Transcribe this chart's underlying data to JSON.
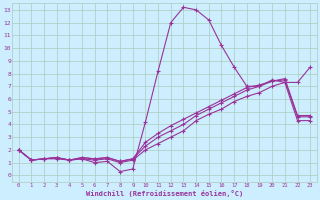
{
  "background_color": "#cceeff",
  "grid_color": "#aaccbb",
  "line_color": "#993399",
  "marker": "+",
  "xlabel": "Windchill (Refroidissement éolien,°C)",
  "xlim": [
    -0.5,
    23.5
  ],
  "ylim": [
    -0.5,
    13.5
  ],
  "xticks": [
    0,
    1,
    2,
    3,
    4,
    5,
    6,
    7,
    8,
    9,
    10,
    11,
    12,
    13,
    14,
    15,
    16,
    17,
    18,
    19,
    20,
    21,
    22,
    23
  ],
  "yticks": [
    0,
    1,
    2,
    3,
    4,
    5,
    6,
    7,
    8,
    9,
    10,
    11,
    12,
    13
  ],
  "curve1_x": [
    0,
    1,
    2,
    3,
    4,
    5,
    6,
    7,
    8,
    9,
    10,
    11,
    12,
    13,
    14,
    15,
    16,
    17,
    18,
    19,
    20,
    21,
    22,
    23
  ],
  "curve1_y": [
    2.0,
    1.2,
    1.3,
    1.3,
    1.2,
    1.3,
    1.0,
    1.1,
    0.3,
    0.5,
    4.2,
    8.2,
    12.0,
    13.2,
    13.0,
    12.2,
    10.2,
    8.5,
    7.0,
    7.0,
    7.5,
    7.3,
    4.3,
    4.3
  ],
  "curve2_x": [
    0,
    1,
    2,
    3,
    4,
    5,
    6,
    7,
    8,
    9,
    10,
    11,
    12,
    13,
    14,
    15,
    16,
    17,
    18,
    19,
    20,
    21,
    22,
    23
  ],
  "curve2_y": [
    2.0,
    1.2,
    1.3,
    1.4,
    1.2,
    1.3,
    1.2,
    1.3,
    1.0,
    1.2,
    2.0,
    2.5,
    3.0,
    3.5,
    4.3,
    4.8,
    5.2,
    5.8,
    6.2,
    6.5,
    7.0,
    7.3,
    7.3,
    8.5
  ],
  "curve3_x": [
    0,
    1,
    2,
    3,
    4,
    5,
    6,
    7,
    8,
    9,
    10,
    11,
    12,
    13,
    14,
    15,
    16,
    17,
    18,
    19,
    20,
    21,
    22,
    23
  ],
  "curve3_y": [
    2.0,
    1.2,
    1.3,
    1.4,
    1.2,
    1.4,
    1.3,
    1.4,
    1.1,
    1.3,
    2.3,
    3.0,
    3.5,
    4.0,
    4.7,
    5.2,
    5.7,
    6.2,
    6.7,
    7.0,
    7.4,
    7.6,
    4.7,
    4.7
  ],
  "curve4_x": [
    0,
    1,
    2,
    3,
    4,
    5,
    6,
    7,
    8,
    9,
    10,
    11,
    12,
    13,
    14,
    15,
    16,
    17,
    18,
    19,
    20,
    21,
    22,
    23
  ],
  "curve4_y": [
    2.0,
    1.2,
    1.3,
    1.4,
    1.2,
    1.4,
    1.3,
    1.4,
    1.1,
    1.3,
    2.6,
    3.3,
    3.9,
    4.4,
    4.9,
    5.4,
    5.9,
    6.4,
    6.9,
    7.1,
    7.4,
    7.5,
    4.6,
    4.6
  ],
  "title_fontsize": 6.5,
  "tick_fontsize_x": 4.0,
  "tick_fontsize_y": 4.5,
  "xlabel_fontsize": 5.0
}
